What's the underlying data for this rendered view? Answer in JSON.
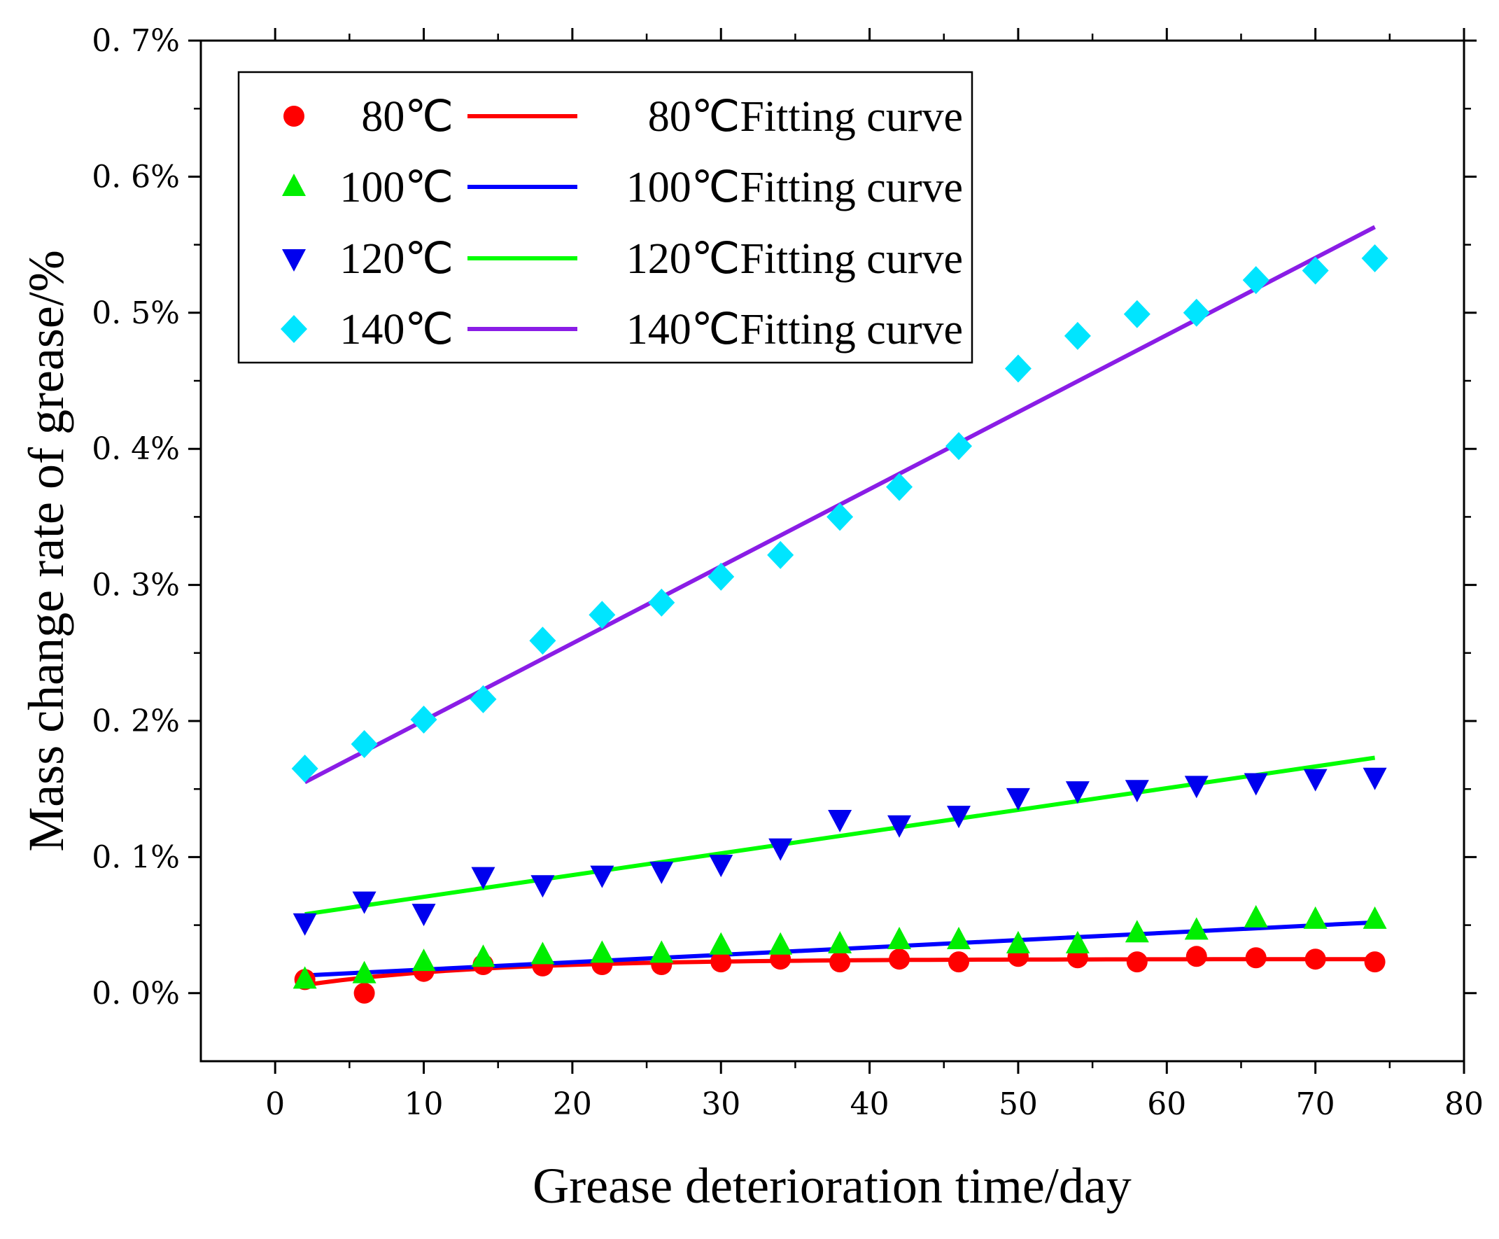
{
  "chart_data": {
    "type": "scatter",
    "xlabel": "Grease deterioration time/day",
    "ylabel": "Mass change rate of grease/%",
    "xlim": [
      -5,
      80
    ],
    "ylim": [
      -0.05,
      0.7
    ],
    "xticks": [
      0,
      10,
      20,
      30,
      40,
      50,
      60,
      70,
      80
    ],
    "xtick_labels": [
      "0",
      "10",
      "20",
      "30",
      "40",
      "50",
      "60",
      "70",
      "80"
    ],
    "yticks": [
      0.0,
      0.1,
      0.2,
      0.3,
      0.4,
      0.5,
      0.6,
      0.7
    ],
    "ytick_labels": [
      "0. 0%",
      "0. 1%",
      "0. 2%",
      "0. 3%",
      "0. 4%",
      "0. 5%",
      "0. 6%",
      "0. 7%"
    ],
    "grid": false,
    "legend_position": "top-left",
    "x": [
      2,
      6,
      10,
      14,
      18,
      22,
      26,
      30,
      34,
      38,
      42,
      46,
      50,
      54,
      58,
      62,
      66,
      70,
      74
    ],
    "series": [
      {
        "name": "80℃",
        "marker": "circle",
        "color": "#ff0000",
        "values": [
          0.01,
          0.0,
          0.016,
          0.021,
          0.02,
          0.021,
          0.021,
          0.023,
          0.025,
          0.023,
          0.025,
          0.023,
          0.027,
          0.026,
          0.023,
          0.027,
          0.026,
          0.025,
          0.023
        ]
      },
      {
        "name": "100℃",
        "marker": "triangle-up",
        "color": "#00ee00",
        "values": [
          0.01,
          0.014,
          0.023,
          0.026,
          0.028,
          0.029,
          0.029,
          0.035,
          0.035,
          0.036,
          0.039,
          0.039,
          0.036,
          0.036,
          0.044,
          0.046,
          0.055,
          0.054,
          0.054
        ]
      },
      {
        "name": "120℃",
        "marker": "triangle-down",
        "color": "#0000ee",
        "values": [
          0.052,
          0.068,
          0.059,
          0.086,
          0.08,
          0.087,
          0.09,
          0.095,
          0.107,
          0.128,
          0.124,
          0.131,
          0.144,
          0.149,
          0.15,
          0.153,
          0.155,
          0.158,
          0.159
        ]
      },
      {
        "name": "140℃",
        "marker": "diamond",
        "color": "#00e5ff",
        "values": [
          0.165,
          0.183,
          0.201,
          0.216,
          0.259,
          0.278,
          0.287,
          0.306,
          0.322,
          0.35,
          0.372,
          0.402,
          0.459,
          0.483,
          0.499,
          0.5,
          0.524,
          0.531,
          0.54
        ]
      }
    ],
    "fits": [
      {
        "name": "80℃Fitting curve",
        "color": "#ff0000",
        "kind": "log",
        "x_range": [
          2,
          74
        ],
        "y_start": 0.006,
        "y_end": 0.025
      },
      {
        "name": "100℃Fitting curve",
        "color": "#0000ff",
        "kind": "linear",
        "x_range": [
          2,
          74
        ],
        "y_start": 0.013,
        "y_end": 0.052
      },
      {
        "name": "120℃Fitting curve",
        "color": "#00ff00",
        "kind": "linear",
        "x_range": [
          2,
          74
        ],
        "y_start": 0.058,
        "y_end": 0.173
      },
      {
        "name": "140℃Fitting curve",
        "color": "#8a1de6",
        "kind": "linear",
        "x_range": [
          2,
          74
        ],
        "y_start": 0.155,
        "y_end": 0.563
      }
    ]
  }
}
